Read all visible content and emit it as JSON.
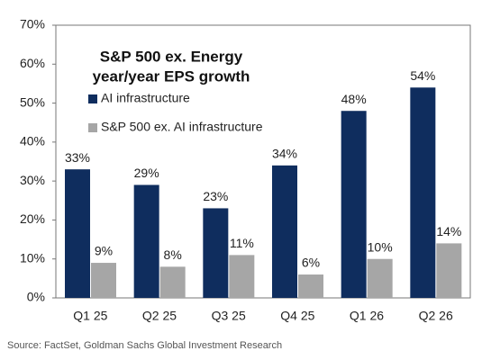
{
  "chart_data": {
    "type": "bar",
    "title": [
      "S&P 500 ex. Energy",
      "year/year EPS growth"
    ],
    "categories": [
      "Q1 25",
      "Q2 25",
      "Q3 25",
      "Q4 25",
      "Q1 26",
      "Q2 26"
    ],
    "series": [
      {
        "name": "AI infrastructure",
        "color": "#0f2d5e",
        "values": [
          33,
          29,
          23,
          34,
          48,
          54
        ],
        "value_labels": [
          "33%",
          "29%",
          "23%",
          "34%",
          "48%",
          "54%"
        ]
      },
      {
        "name": "S&P 500 ex. AI infrastructure",
        "color": "#a6a6a6",
        "values": [
          9,
          8,
          11,
          6,
          10,
          14
        ],
        "value_labels": [
          "9%",
          "8%",
          "11%",
          "6%",
          "10%",
          "14%"
        ]
      }
    ],
    "ylim": [
      0,
      70
    ],
    "yticks": [
      {
        "value": 0,
        "label": "0%"
      },
      {
        "value": 10,
        "label": "10%"
      },
      {
        "value": 20,
        "label": "20%"
      },
      {
        "value": 30,
        "label": "30%"
      },
      {
        "value": 40,
        "label": "40%"
      },
      {
        "value": 50,
        "label": "50%"
      },
      {
        "value": 60,
        "label": "60%"
      },
      {
        "value": 70,
        "label": "70%"
      }
    ],
    "grid": false,
    "source": "Source: FactSet, Goldman Sachs Global Investment Research"
  }
}
